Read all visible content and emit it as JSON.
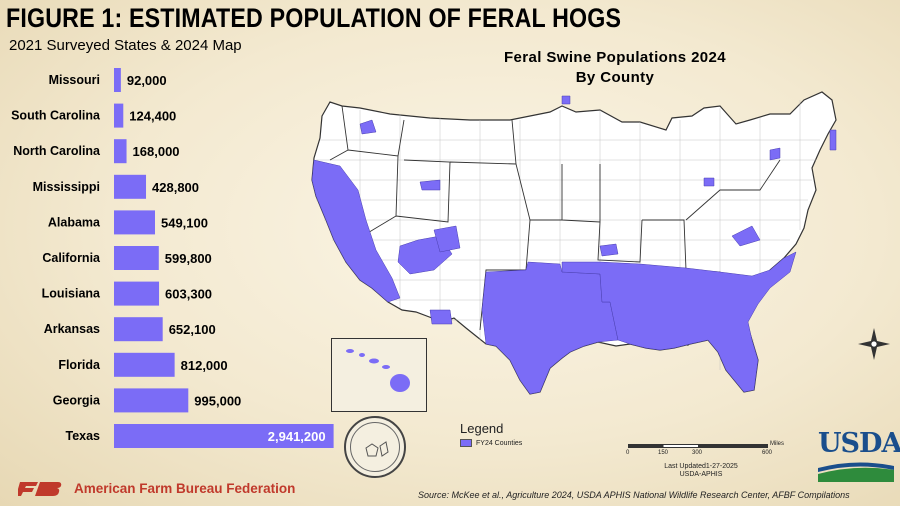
{
  "header": {
    "title": "FIGURE 1: ESTIMATED POPULATION OF FERAL HOGS",
    "subtitle": "2021 Surveyed States & 2024 Map"
  },
  "chart_data": {
    "type": "bar",
    "orientation": "horizontal",
    "categories": [
      "Missouri",
      "South Carolina",
      "North Carolina",
      "Mississippi",
      "Alabama",
      "California",
      "Louisiana",
      "Arkansas",
      "Florida",
      "Georgia",
      "Texas"
    ],
    "values": [
      92000,
      124400,
      168000,
      428800,
      549100,
      599800,
      603300,
      652100,
      812000,
      995000,
      2941200
    ],
    "value_labels": [
      "92,000",
      "124,400",
      "168,000",
      "428,800",
      "549,100",
      "599,800",
      "603,300",
      "652,100",
      "812,000",
      "995,000",
      "2,941,200"
    ],
    "bar_color": "#7b6cf6",
    "xlim": [
      0,
      3000000
    ],
    "grid": false
  },
  "map": {
    "title_line1": "Feral Swine Populations 2024",
    "title_line2": "By County",
    "fill_color": "#7b6cf6",
    "legend_title": "Legend",
    "legend_label": "FY24 Counties",
    "scale_ticks": [
      "0",
      "150",
      "300",
      "600"
    ],
    "scale_unit": "Miles",
    "updated_line1": "Last Updated1-27-2025",
    "updated_line2": "USDA-APHIS",
    "compass_icon": "compass-rose-icon"
  },
  "branding": {
    "usda_logo_text": "USDA",
    "usda_logo_color": "#1a4e8c",
    "seal_icon": "southeastern-cooperative-wildlife-disease-study-seal-icon",
    "afbf_name": "American Farm Bureau Federation",
    "afbf_color": "#c0392b"
  },
  "footer": {
    "source": "Source: McKee et al., Agriculture 2024, USDA APHIS National Wildlife Research Center, AFBF Compilations"
  }
}
